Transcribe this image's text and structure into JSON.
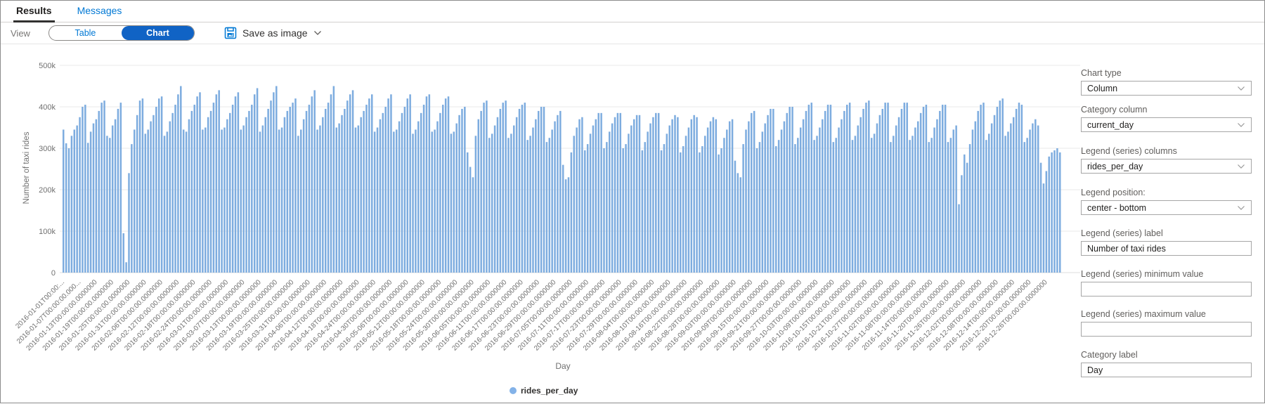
{
  "tabs": {
    "results": "Results",
    "messages": "Messages"
  },
  "toolbar": {
    "view_label": "View",
    "table_label": "Table",
    "chart_label": "Chart",
    "save_as_image_label": "Save as image"
  },
  "panel": {
    "fields": [
      {
        "label": "Chart type",
        "value": "Column",
        "type": "dropdown"
      },
      {
        "label": "Category column",
        "value": "current_day",
        "type": "dropdown"
      },
      {
        "label": "Legend (series) columns",
        "value": "rides_per_day",
        "type": "dropdown"
      },
      {
        "label": "Legend position:",
        "value": "center - bottom",
        "type": "dropdown"
      },
      {
        "label": "Legend (series) label",
        "value": "Number of taxi rides",
        "type": "text"
      },
      {
        "label": "Legend (series) minimum value",
        "value": "",
        "type": "text"
      },
      {
        "label": "Legend (series) maximum value",
        "value": "",
        "type": "text"
      },
      {
        "label": "Category label",
        "value": "Day",
        "type": "text"
      }
    ]
  },
  "colors": {
    "accent": "#0078d4",
    "selected_toggle_bg": "#1063c5",
    "bar": "#7dacdf",
    "legend_dot": "#83b2e8",
    "grid": "#e8e8e8",
    "axis_text": "#707070"
  },
  "chart_data": {
    "type": "bar",
    "title": "",
    "xlabel": "Day",
    "ylabel": "Number of taxi rides",
    "ylim": [
      0,
      500000
    ],
    "y_tick_labels": [
      "0",
      "100k",
      "200k",
      "300k",
      "400k",
      "500k"
    ],
    "grid": "horizontal",
    "legend_position": "center-bottom",
    "legend_entries": [
      "rides_per_day"
    ],
    "x_start_date": "2016-01-01",
    "x_end_date": "2016-12-31",
    "x_tick_every_n_days": 6,
    "x_tick_labels": [
      "2016-01-01T00:00:...",
      "2016-01-07T00:00:00.000...",
      "2016-01-13T00:00:00.0000000",
      "2016-01-19T00:00:00.0000000",
      "2016-01-25T00:00:00.0000000",
      "2016-01-31T00:00:00.0000000",
      "2016-02-06T00:00:00.0000000",
      "2016-02-12T00:00:00.0000000",
      "2016-02-18T00:00:00.0000000",
      "2016-02-24T00:00:00.0000000",
      "2016-03-01T00:00:00.0000000",
      "2016-03-07T00:00:00.0000000",
      "2016-03-13T00:00:00.0000000",
      "2016-03-19T00:00:00.0000000",
      "2016-03-25T00:00:00.0000000",
      "2016-03-31T00:00:00.0000000",
      "2016-04-06T00:00:00.0000000",
      "2016-04-12T00:00:00.0000000",
      "2016-04-18T00:00:00.0000000",
      "2016-04-24T00:00:00.0000000",
      "2016-04-30T00:00:00.0000000",
      "2016-05-06T00:00:00.0000000",
      "2016-05-12T00:00:00.0000000",
      "2016-05-18T00:00:00.0000000",
      "2016-05-24T00:00:00.0000000",
      "2016-05-30T00:00:00.0000000",
      "2016-06-05T00:00:00.0000000",
      "2016-06-11T00:00:00.0000000",
      "2016-06-17T00:00:00.0000000",
      "2016-06-23T00:00:00.0000000",
      "2016-06-29T00:00:00.0000000",
      "2016-07-05T00:00:00.0000000",
      "2016-07-11T00:00:00.0000000",
      "2016-07-17T00:00:00.0000000",
      "2016-07-23T00:00:00.0000000",
      "2016-07-29T00:00:00.0000000",
      "2016-08-04T00:00:00.0000000",
      "2016-08-10T00:00:00.0000000",
      "2016-08-16T00:00:00.0000000",
      "2016-08-22T00:00:00.0000000",
      "2016-08-28T00:00:00.0000000",
      "2016-09-03T00:00:00.0000000",
      "2016-09-09T00:00:00.0000000",
      "2016-09-15T00:00:00.0000000",
      "2016-09-21T00:00:00.0000000",
      "2016-09-27T00:00:00.0000000",
      "2016-10-03T00:00:00.0000000",
      "2016-10-09T00:00:00.0000000",
      "2016-10-15T00:00:00.0000000",
      "2016-10-21T00:00:00.0000000",
      "2016-10-27T00:00:00.0000000",
      "2016-11-02T00:00:00.0000000",
      "2016-11-08T00:00:00.0000000",
      "2016-11-14T00:00:00.0000000",
      "2016-11-20T00:00:00.0000000",
      "2016-11-26T00:00:00.0000000",
      "2016-12-02T00:00:00.0000000",
      "2016-12-08T00:00:00.0000000",
      "2016-12-14T00:00:00.0000000",
      "2016-12-20T00:00:00.0000000",
      "2016-12-26T00:00:00.0000000"
    ],
    "values_unit": "taxi rides per day (values are in thousands, estimated from chart)",
    "series": [
      {
        "name": "rides_per_day",
        "values_in_thousands": [
          345,
          312,
          300,
          330,
          345,
          355,
          375,
          400,
          405,
          313,
          340,
          360,
          370,
          390,
          410,
          415,
          330,
          325,
          355,
          370,
          395,
          410,
          95,
          25,
          240,
          310,
          345,
          380,
          415,
          420,
          335,
          345,
          365,
          380,
          400,
          420,
          425,
          330,
          340,
          365,
          385,
          405,
          430,
          450,
          345,
          340,
          370,
          390,
          405,
          425,
          435,
          345,
          350,
          375,
          390,
          410,
          430,
          440,
          345,
          350,
          370,
          385,
          405,
          425,
          435,
          345,
          355,
          375,
          390,
          405,
          430,
          445,
          340,
          355,
          375,
          395,
          415,
          435,
          450,
          345,
          350,
          375,
          390,
          400,
          410,
          420,
          330,
          345,
          370,
          390,
          405,
          425,
          440,
          345,
          355,
          375,
          395,
          410,
          430,
          450,
          350,
          360,
          380,
          395,
          415,
          430,
          440,
          350,
          355,
          375,
          390,
          405,
          420,
          430,
          340,
          350,
          370,
          385,
          400,
          420,
          430,
          340,
          345,
          365,
          385,
          400,
          420,
          430,
          335,
          345,
          365,
          385,
          405,
          425,
          430,
          340,
          345,
          365,
          385,
          405,
          420,
          425,
          335,
          340,
          360,
          380,
          395,
          400,
          290,
          255,
          230,
          330,
          370,
          390,
          410,
          415,
          325,
          335,
          355,
          375,
          395,
          410,
          415,
          325,
          335,
          355,
          375,
          395,
          405,
          410,
          320,
          330,
          350,
          370,
          390,
          400,
          400,
          315,
          325,
          345,
          365,
          380,
          390,
          260,
          225,
          230,
          290,
          330,
          350,
          370,
          375,
          295,
          310,
          335,
          355,
          370,
          385,
          385,
          300,
          315,
          340,
          360,
          375,
          385,
          385,
          300,
          310,
          335,
          355,
          370,
          380,
          380,
          295,
          315,
          340,
          360,
          375,
          385,
          385,
          295,
          310,
          335,
          355,
          370,
          380,
          375,
          290,
          305,
          330,
          350,
          370,
          380,
          375,
          290,
          305,
          330,
          350,
          365,
          375,
          370,
          285,
          300,
          325,
          345,
          365,
          370,
          270,
          240,
          230,
          310,
          345,
          365,
          385,
          390,
          300,
          315,
          340,
          360,
          380,
          395,
          395,
          305,
          320,
          345,
          365,
          385,
          400,
          400,
          310,
          325,
          350,
          370,
          390,
          405,
          410,
          320,
          330,
          350,
          370,
          390,
          405,
          405,
          315,
          325,
          350,
          370,
          390,
          405,
          410,
          320,
          330,
          355,
          375,
          395,
          410,
          415,
          325,
          335,
          360,
          380,
          395,
          410,
          410,
          315,
          330,
          355,
          375,
          395,
          410,
          410,
          320,
          330,
          350,
          365,
          385,
          400,
          405,
          315,
          325,
          350,
          370,
          390,
          405,
          405,
          315,
          325,
          345,
          355,
          165,
          235,
          285,
          265,
          310,
          345,
          365,
          390,
          405,
          410,
          320,
          335,
          360,
          380,
          400,
          415,
          420,
          330,
          340,
          360,
          375,
          395,
          410,
          405,
          315,
          325,
          345,
          360,
          370,
          355,
          265,
          215,
          245,
          280,
          290,
          295,
          300,
          290
        ]
      }
    ]
  }
}
